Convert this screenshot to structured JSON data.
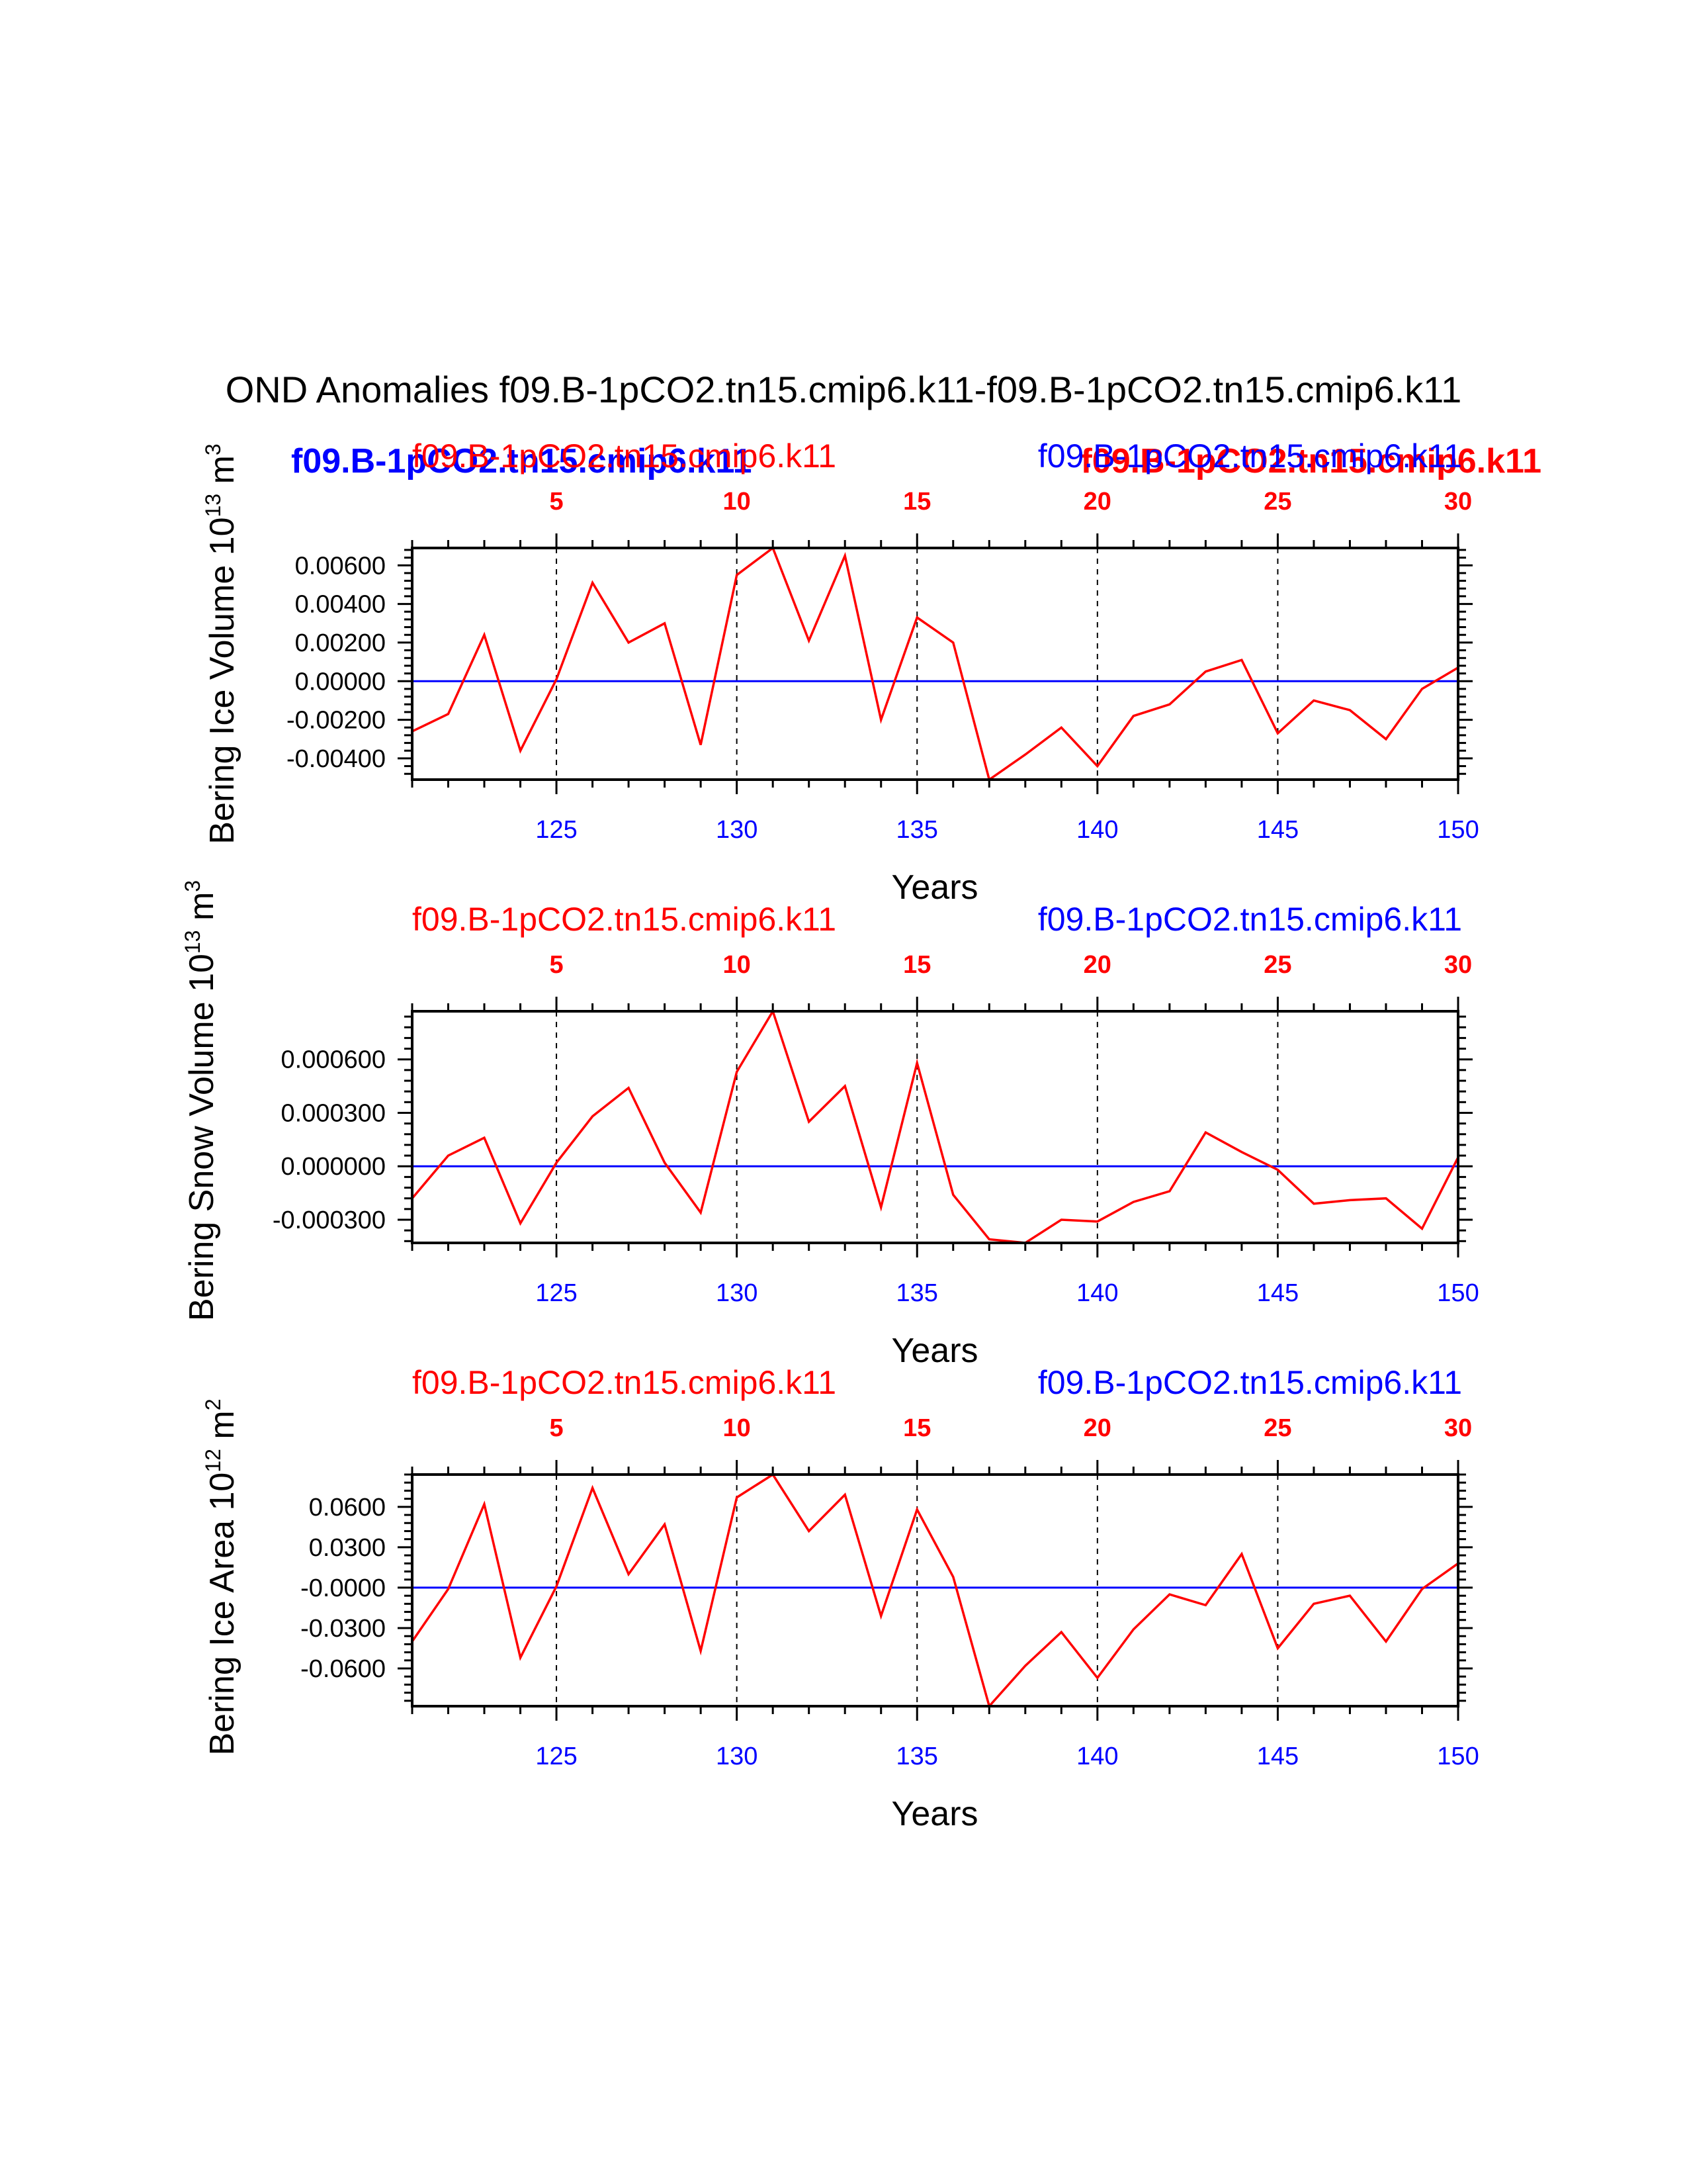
{
  "title": "OND Anomalies f09.B-1pCO2.tn15.cmip6.k11-f09.B-1pCO2.tn15.cmip6.k11",
  "overlay": {
    "blue_label": "f09.B-1pCO2.tn15.cmip6.k11",
    "red_label": "f09.B-1pCO2.tn15.cmip6.k11"
  },
  "colors": {
    "series": "#ff0000",
    "zero_line": "#0000ff",
    "bottom_ticks": "#0000ff",
    "top_ticks": "#ff0000"
  },
  "chart_data": [
    {
      "type": "line",
      "subtitle_left": "f09.B-1pCO2.tn15.cmip6.k11",
      "subtitle_right": "f09.B-1pCO2.tn15.cmip6.k11",
      "ylabel": "Bering Ice Volume 10",
      "ylabel_exp": "13",
      "ylabel_unit": " m",
      "ylabel_unit_exp": "3",
      "xlabel": "Years",
      "xlim": [
        121,
        150
      ],
      "ylim": [
        -0.0051,
        0.0069
      ],
      "yticks": [
        -0.004,
        -0.002,
        0,
        0.002,
        0.004,
        0.006
      ],
      "ytick_labels": [
        "-0.00400",
        "-0.00200",
        "0.00000",
        "0.00200",
        "0.00400",
        "0.00600"
      ],
      "xticks_bottom": [
        125,
        130,
        135,
        140,
        145,
        150
      ],
      "xtick_labels_bottom": [
        "125",
        "130",
        "135",
        "140",
        "145",
        "150"
      ],
      "xtick_labels_top": [
        "5",
        "10",
        "15",
        "20",
        "25",
        "30"
      ],
      "x": [
        121,
        122,
        123,
        124,
        125,
        126,
        127,
        128,
        129,
        130,
        131,
        132,
        133,
        134,
        135,
        136,
        137,
        138,
        139,
        140,
        141,
        142,
        143,
        144,
        145,
        146,
        147,
        148,
        149,
        150
      ],
      "series": [
        {
          "name": "anomaly",
          "values": [
            -0.0026,
            -0.0017,
            0.0024,
            -0.0036,
            0.0001,
            0.0051,
            0.002,
            0.003,
            -0.0033,
            0.0055,
            0.0069,
            0.0021,
            0.0065,
            -0.002,
            0.0033,
            0.002,
            -0.0051,
            -0.0038,
            -0.0024,
            -0.0044,
            -0.0018,
            -0.0012,
            0.0005,
            0.0011,
            -0.0027,
            -0.001,
            -0.0015,
            -0.003,
            -0.0004,
            0.0007
          ]
        }
      ],
      "zero_line": 0
    },
    {
      "type": "line",
      "subtitle_left": "f09.B-1pCO2.tn15.cmip6.k11",
      "subtitle_right": "f09.B-1pCO2.tn15.cmip6.k11",
      "ylabel": "Bering Snow Volume 10",
      "ylabel_exp": "13",
      "ylabel_unit": " m",
      "ylabel_unit_exp": "3",
      "xlabel": "Years",
      "xlim": [
        121,
        150
      ],
      "ylim": [
        -0.00043,
        0.00087
      ],
      "yticks": [
        -0.0003,
        0,
        0.0003,
        0.0006
      ],
      "ytick_labels": [
        "-0.000300",
        "0.000000",
        "0.000300",
        "0.000600"
      ],
      "xticks_bottom": [
        125,
        130,
        135,
        140,
        145,
        150
      ],
      "xtick_labels_bottom": [
        "125",
        "130",
        "135",
        "140",
        "145",
        "150"
      ],
      "xtick_labels_top": [
        "5",
        "10",
        "15",
        "20",
        "25",
        "30"
      ],
      "x": [
        121,
        122,
        123,
        124,
        125,
        126,
        127,
        128,
        129,
        130,
        131,
        132,
        133,
        134,
        135,
        136,
        137,
        138,
        139,
        140,
        141,
        142,
        143,
        144,
        145,
        146,
        147,
        148,
        149,
        150
      ],
      "series": [
        {
          "name": "anomaly",
          "values": [
            -0.00018,
            6e-05,
            0.00016,
            -0.00032,
            2e-05,
            0.00028,
            0.00044,
            2e-05,
            -0.00026,
            0.00053,
            0.00087,
            0.00025,
            0.00045,
            -0.00023,
            0.00058,
            -0.00016,
            -0.00041,
            -0.00043,
            -0.0003,
            -0.00031,
            -0.0002,
            -0.00014,
            0.00019,
            8e-05,
            -2e-05,
            -0.00021,
            -0.00019,
            -0.00018,
            -0.00035,
            5e-05
          ]
        }
      ],
      "zero_line": 0
    },
    {
      "type": "line",
      "subtitle_left": "f09.B-1pCO2.tn15.cmip6.k11",
      "subtitle_right": "f09.B-1pCO2.tn15.cmip6.k11",
      "ylabel": "Bering Ice Area 10",
      "ylabel_exp": "12",
      "ylabel_unit": " m",
      "ylabel_unit_exp": "2",
      "xlabel": "Years",
      "xlim": [
        121,
        150
      ],
      "ylim": [
        -0.088,
        0.084
      ],
      "yticks": [
        -0.06,
        -0.03,
        0,
        0.03,
        0.06
      ],
      "ytick_labels": [
        "-0.0600",
        "-0.0300",
        "-0.0000",
        "0.0300",
        "0.0600"
      ],
      "xticks_bottom": [
        125,
        130,
        135,
        140,
        145,
        150
      ],
      "xtick_labels_bottom": [
        "125",
        "130",
        "135",
        "140",
        "145",
        "150"
      ],
      "xtick_labels_top": [
        "5",
        "10",
        "15",
        "20",
        "25",
        "30"
      ],
      "x": [
        121,
        122,
        123,
        124,
        125,
        126,
        127,
        128,
        129,
        130,
        131,
        132,
        133,
        134,
        135,
        136,
        137,
        138,
        139,
        140,
        141,
        142,
        143,
        144,
        145,
        146,
        147,
        148,
        149,
        150
      ],
      "series": [
        {
          "name": "anomaly",
          "values": [
            -0.04,
            -0.001,
            0.062,
            -0.052,
            0.001,
            0.074,
            0.01,
            0.047,
            -0.047,
            0.067,
            0.084,
            0.042,
            0.069,
            -0.021,
            0.058,
            0.008,
            -0.088,
            -0.058,
            -0.033,
            -0.067,
            -0.031,
            -0.005,
            -0.013,
            0.025,
            -0.045,
            -0.012,
            -0.006,
            -0.04,
            -0.001,
            0.018
          ]
        }
      ],
      "zero_line": 0
    }
  ]
}
